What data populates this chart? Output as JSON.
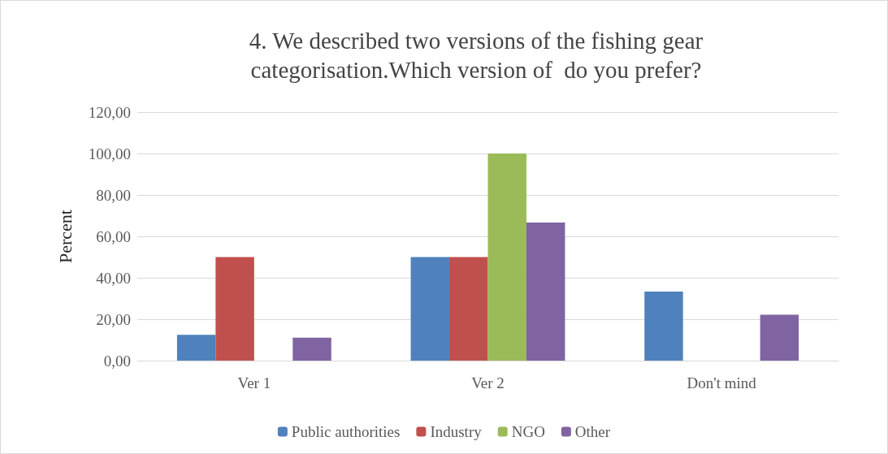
{
  "chart_data": {
    "type": "bar",
    "title": "4. We described two versions of the fishing gear\ncategorisation.Which version of  do you prefer?",
    "ylabel": "Percent",
    "categories": [
      "Ver 1",
      "Ver 2",
      "Don't mind"
    ],
    "series": [
      {
        "name": "Public authorities",
        "color": "#4f81bd",
        "values": [
          12.5,
          50,
          33.3
        ]
      },
      {
        "name": "Industry",
        "color": "#c0504d",
        "values": [
          50,
          50,
          0
        ]
      },
      {
        "name": "NGO",
        "color": "#9bbb59",
        "values": [
          0,
          100,
          0
        ]
      },
      {
        "name": "Other",
        "color": "#8064a2",
        "values": [
          11.1,
          66.7,
          22.2
        ]
      }
    ],
    "ylim": [
      0,
      120
    ],
    "yticks": [
      {
        "value": 0,
        "label": "0,00"
      },
      {
        "value": 20,
        "label": "20,00"
      },
      {
        "value": 40,
        "label": "40,00"
      },
      {
        "value": 60,
        "label": "60,00"
      },
      {
        "value": 80,
        "label": "80,00"
      },
      {
        "value": 100,
        "label": "100,00"
      },
      {
        "value": 120,
        "label": "120,00"
      }
    ],
    "grid": "y",
    "legend": "bottom"
  }
}
